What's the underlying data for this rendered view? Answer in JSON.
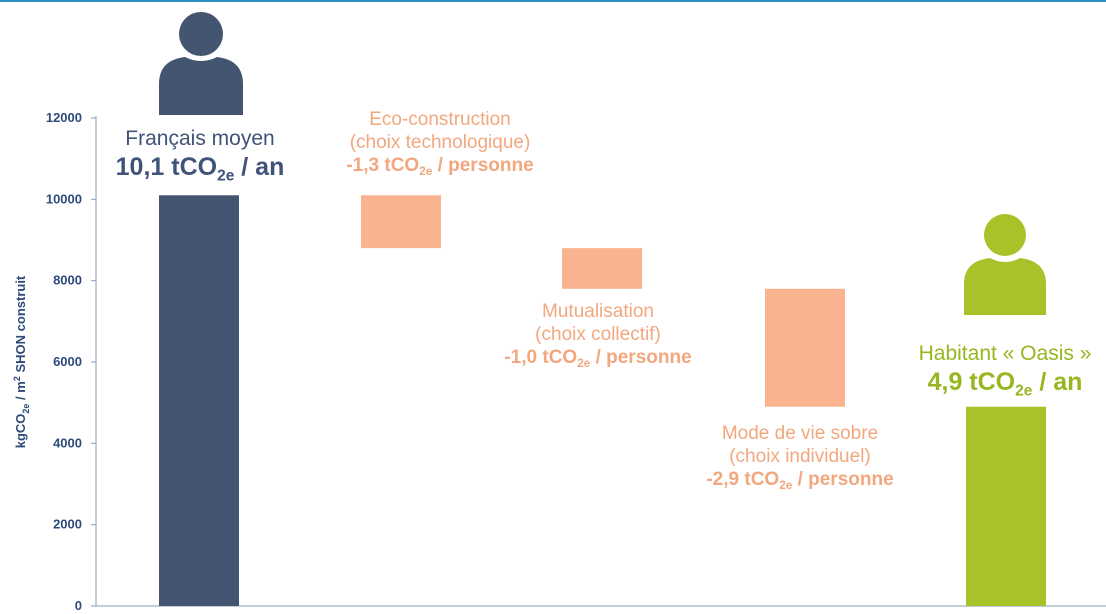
{
  "chart_data": {
    "type": "bar",
    "subtype": "waterfall",
    "ylabel_parts": [
      "kgCO",
      "2e",
      " / m",
      "2",
      " SHON construit"
    ],
    "ylim": [
      0,
      12000
    ],
    "yticks": [
      "0",
      "2000",
      "4000",
      "6000",
      "8000",
      "10000",
      "12000"
    ],
    "grid": false,
    "bars": [
      {
        "kind": "total",
        "start": 0,
        "end": 10100,
        "color": "#435570"
      },
      {
        "kind": "decrease",
        "start": 10100,
        "end": 8800,
        "color": "#f9b48f"
      },
      {
        "kind": "decrease",
        "start": 8800,
        "end": 7800,
        "color": "#f9b48f"
      },
      {
        "kind": "decrease",
        "start": 7800,
        "end": 4900,
        "color": "#f9b48f"
      },
      {
        "kind": "total",
        "start": 0,
        "end": 4900,
        "color": "#a8c22a"
      }
    ],
    "labels": [
      {
        "lines": [
          "Français moyen"
        ],
        "value": "10,1 tCO",
        "value_sub": "2e",
        "value_suffix": " / an"
      },
      {
        "lines": [
          "Eco-construction",
          "(choix technologique)"
        ],
        "value": "-1,3 tCO",
        "value_sub": "2e",
        "value_suffix": " / personne"
      },
      {
        "lines": [
          "Mutualisation",
          "(choix collectif)"
        ],
        "value": "-1,0 tCO",
        "value_sub": "2e",
        "value_suffix": " / personne"
      },
      {
        "lines": [
          "Mode de vie sobre",
          "(choix individuel)"
        ],
        "value": "-2,9 tCO",
        "value_sub": "2e",
        "value_suffix": " / personne"
      },
      {
        "lines": [
          "Habitant « Oasis »"
        ],
        "value": "4,9 tCO",
        "value_sub": "2e",
        "value_suffix": " / an"
      }
    ]
  },
  "colors": {
    "axis": "#8a9bb8",
    "tick_text": "#2e4a7a",
    "total_bar": "#435570",
    "decrease_bar": "#f9b48f",
    "result_bar": "#a8c22a",
    "top_line": "#2f8fc9"
  },
  "icons": [
    "person-dark-icon",
    "person-green-icon"
  ]
}
